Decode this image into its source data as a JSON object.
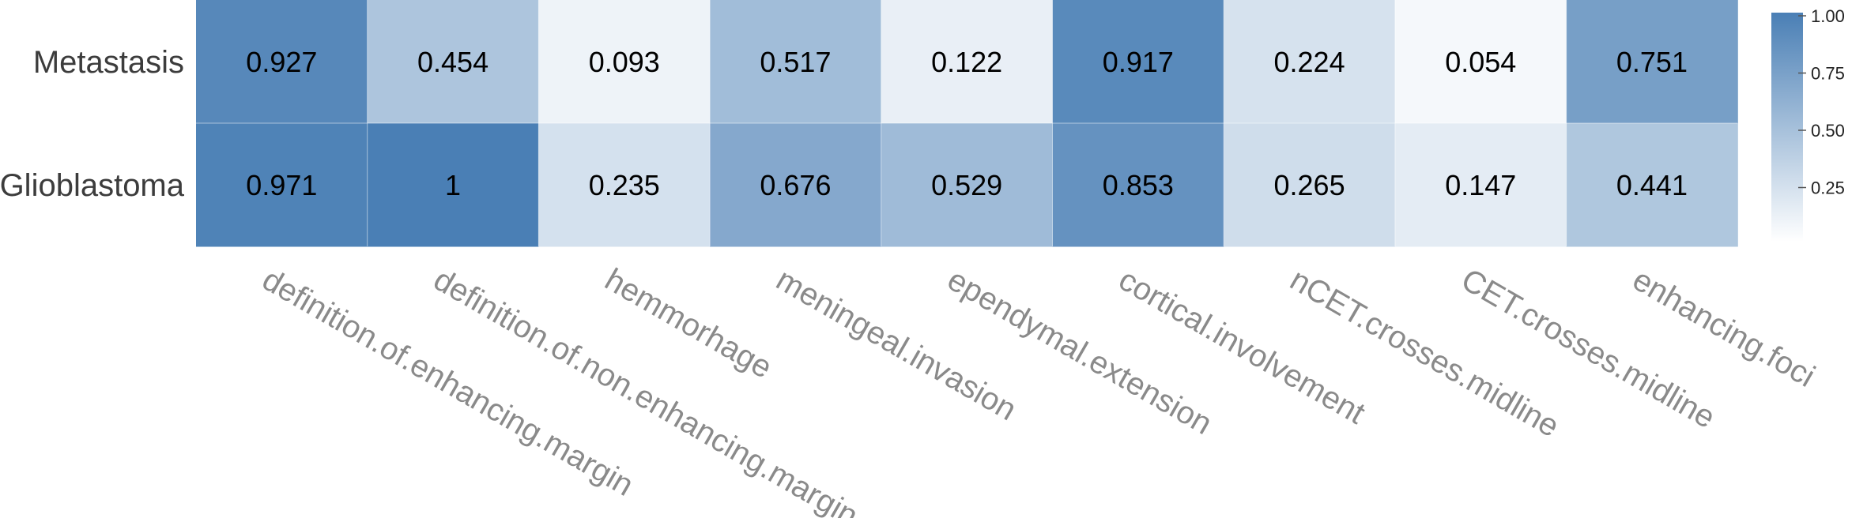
{
  "chart_data": {
    "type": "heatmap",
    "title": "",
    "xlabel": "",
    "ylabel": "",
    "rows": [
      "Metastasis",
      "Glioblastoma"
    ],
    "columns": [
      "definition.of.enhancing.margin",
      "definition.of.non.enhancing.margin",
      "hemmorhage",
      "meningeal.invasion",
      "ependymal.extension",
      "cortical.involvement",
      "nCET.crosses.midline",
      "CET.crosses.midline",
      "enhancing.foci"
    ],
    "values": [
      [
        0.927,
        0.454,
        0.093,
        0.517,
        0.122,
        0.917,
        0.224,
        0.054,
        0.751
      ],
      [
        0.971,
        1,
        0.235,
        0.676,
        0.529,
        0.853,
        0.265,
        0.147,
        0.441
      ]
    ],
    "value_labels": [
      [
        "0.927",
        "0.454",
        "0.093",
        "0.517",
        "0.122",
        "0.917",
        "0.224",
        "0.054",
        "0.751"
      ],
      [
        "0.971",
        "1",
        "0.235",
        "0.676",
        "0.529",
        "0.853",
        "0.265",
        "0.147",
        "0.441"
      ]
    ],
    "colorscale": {
      "range": [
        0,
        1
      ],
      "low_color": "#ffffff",
      "high_color": "#4a7fb5",
      "ticks": [
        0.25,
        0.5,
        0.75,
        1.0
      ],
      "tick_labels": [
        "0.25",
        "0.50",
        "0.75",
        "1.00"
      ]
    },
    "legend": "right"
  }
}
